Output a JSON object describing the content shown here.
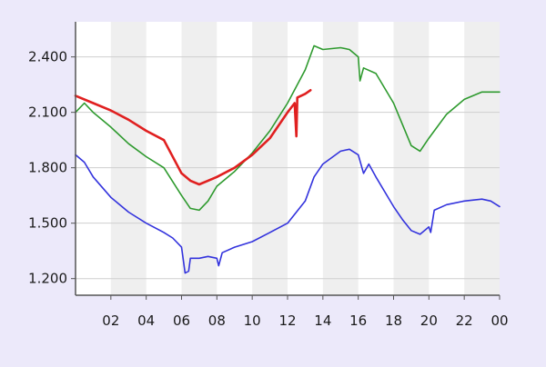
{
  "chart_data": {
    "type": "line",
    "title": "",
    "xlabel": "",
    "ylabel": "",
    "x_unit": "hour of day",
    "x_tick_labels": [
      "02",
      "04",
      "06",
      "08",
      "10",
      "12",
      "14",
      "16",
      "18",
      "20",
      "22",
      "00"
    ],
    "y_tick_labels": [
      "1.200",
      "1.500",
      "1.800",
      "2.100",
      "2.400"
    ],
    "xlim": [
      0,
      24
    ],
    "ylim": [
      1110,
      2590
    ],
    "grid": true,
    "banded_background": true,
    "legend": "none",
    "series": [
      {
        "color": "#e02020",
        "points": [
          [
            0,
            2190
          ],
          [
            1,
            2150
          ],
          [
            2,
            2110
          ],
          [
            3,
            2060
          ],
          [
            4,
            2000
          ],
          [
            5,
            1950
          ],
          [
            6,
            1770
          ],
          [
            6.5,
            1730
          ],
          [
            7,
            1710
          ],
          [
            7.5,
            1730
          ],
          [
            8,
            1750
          ],
          [
            9,
            1800
          ],
          [
            10,
            1870
          ],
          [
            11,
            1960
          ],
          [
            12,
            2100
          ],
          [
            12.4,
            2150
          ],
          [
            12.5,
            1970
          ],
          [
            12.55,
            2180
          ],
          [
            13,
            2200
          ],
          [
            13.3,
            2220
          ]
        ]
      },
      {
        "color": "#2e9a2e",
        "points": [
          [
            0,
            2100
          ],
          [
            0.5,
            2150
          ],
          [
            1,
            2100
          ],
          [
            2,
            2020
          ],
          [
            3,
            1930
          ],
          [
            4,
            1860
          ],
          [
            5,
            1800
          ],
          [
            6,
            1650
          ],
          [
            6.5,
            1580
          ],
          [
            7,
            1570
          ],
          [
            7.5,
            1620
          ],
          [
            8,
            1700
          ],
          [
            9,
            1780
          ],
          [
            10,
            1880
          ],
          [
            11,
            2000
          ],
          [
            12,
            2150
          ],
          [
            13,
            2330
          ],
          [
            13.5,
            2460
          ],
          [
            14,
            2440
          ],
          [
            15,
            2450
          ],
          [
            15.5,
            2440
          ],
          [
            16,
            2400
          ],
          [
            16.1,
            2270
          ],
          [
            16.3,
            2340
          ],
          [
            17,
            2310
          ],
          [
            18,
            2150
          ],
          [
            19,
            1920
          ],
          [
            19.5,
            1890
          ],
          [
            20,
            1960
          ],
          [
            21,
            2090
          ],
          [
            22,
            2170
          ],
          [
            23,
            2210
          ],
          [
            24,
            2210
          ]
        ]
      },
      {
        "color": "#3333dd",
        "points": [
          [
            0,
            1870
          ],
          [
            0.5,
            1830
          ],
          [
            1,
            1750
          ],
          [
            2,
            1640
          ],
          [
            3,
            1560
          ],
          [
            4,
            1500
          ],
          [
            5,
            1450
          ],
          [
            5.5,
            1420
          ],
          [
            6,
            1370
          ],
          [
            6.2,
            1230
          ],
          [
            6.4,
            1240
          ],
          [
            6.5,
            1310
          ],
          [
            7,
            1310
          ],
          [
            7.5,
            1320
          ],
          [
            8,
            1310
          ],
          [
            8.1,
            1270
          ],
          [
            8.3,
            1340
          ],
          [
            9,
            1370
          ],
          [
            10,
            1400
          ],
          [
            11,
            1450
          ],
          [
            12,
            1500
          ],
          [
            13,
            1620
          ],
          [
            13.5,
            1750
          ],
          [
            14,
            1820
          ],
          [
            15,
            1890
          ],
          [
            15.5,
            1900
          ],
          [
            16,
            1870
          ],
          [
            16.3,
            1770
          ],
          [
            16.6,
            1820
          ],
          [
            17,
            1750
          ],
          [
            18,
            1590
          ],
          [
            18.5,
            1520
          ],
          [
            19,
            1460
          ],
          [
            19.5,
            1440
          ],
          [
            20,
            1480
          ],
          [
            20.1,
            1450
          ],
          [
            20.3,
            1570
          ],
          [
            21,
            1600
          ],
          [
            22,
            1620
          ],
          [
            23,
            1630
          ],
          [
            23.5,
            1620
          ],
          [
            24,
            1590
          ]
        ]
      }
    ]
  }
}
